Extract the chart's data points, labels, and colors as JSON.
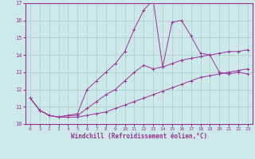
{
  "xlabel": "Windchill (Refroidissement éolien,°C)",
  "background_color": "#cce8e8",
  "grid_color": "#aacccc",
  "line_color": "#993399",
  "xlim": [
    -0.5,
    23.5
  ],
  "ylim": [
    10,
    17
  ],
  "xticks": [
    0,
    1,
    2,
    3,
    4,
    5,
    6,
    7,
    8,
    9,
    10,
    11,
    12,
    13,
    14,
    15,
    16,
    17,
    18,
    19,
    20,
    21,
    22,
    23
  ],
  "yticks": [
    10,
    11,
    12,
    13,
    14,
    15,
    16,
    17
  ],
  "series": [
    {
      "x": [
        0,
        1,
        2,
        3,
        4,
        5,
        6,
        7,
        8,
        9,
        10,
        11,
        12,
        13,
        14,
        15,
        16,
        17,
        18,
        19,
        20,
        21,
        22,
        23
      ],
      "y": [
        11.5,
        10.8,
        10.5,
        10.4,
        10.4,
        10.4,
        10.5,
        10.6,
        10.7,
        10.9,
        11.1,
        11.3,
        11.5,
        11.7,
        11.9,
        12.1,
        12.3,
        12.5,
        12.7,
        12.8,
        12.9,
        13.0,
        13.1,
        13.2
      ]
    },
    {
      "x": [
        0,
        1,
        2,
        3,
        4,
        5,
        6,
        7,
        8,
        9,
        10,
        11,
        12,
        13,
        14,
        15,
        16,
        17,
        18,
        19,
        20,
        21,
        22,
        23
      ],
      "y": [
        11.5,
        10.8,
        10.5,
        10.4,
        10.5,
        10.5,
        10.9,
        11.3,
        11.7,
        12.0,
        12.5,
        13.0,
        13.4,
        13.2,
        13.3,
        13.5,
        13.7,
        13.8,
        13.9,
        14.0,
        14.1,
        14.2,
        14.2,
        14.3
      ]
    },
    {
      "x": [
        0,
        1,
        2,
        3,
        4,
        5,
        6,
        7,
        8,
        9,
        10,
        11,
        12,
        13,
        14,
        15,
        16,
        17,
        18,
        19,
        20,
        21,
        22,
        23
      ],
      "y": [
        11.5,
        10.8,
        10.5,
        10.4,
        10.5,
        10.6,
        12.0,
        12.5,
        13.0,
        13.5,
        14.2,
        15.5,
        16.6,
        17.2,
        13.3,
        15.9,
        16.0,
        15.1,
        14.1,
        14.0,
        13.0,
        12.9,
        13.0,
        12.9
      ]
    }
  ]
}
